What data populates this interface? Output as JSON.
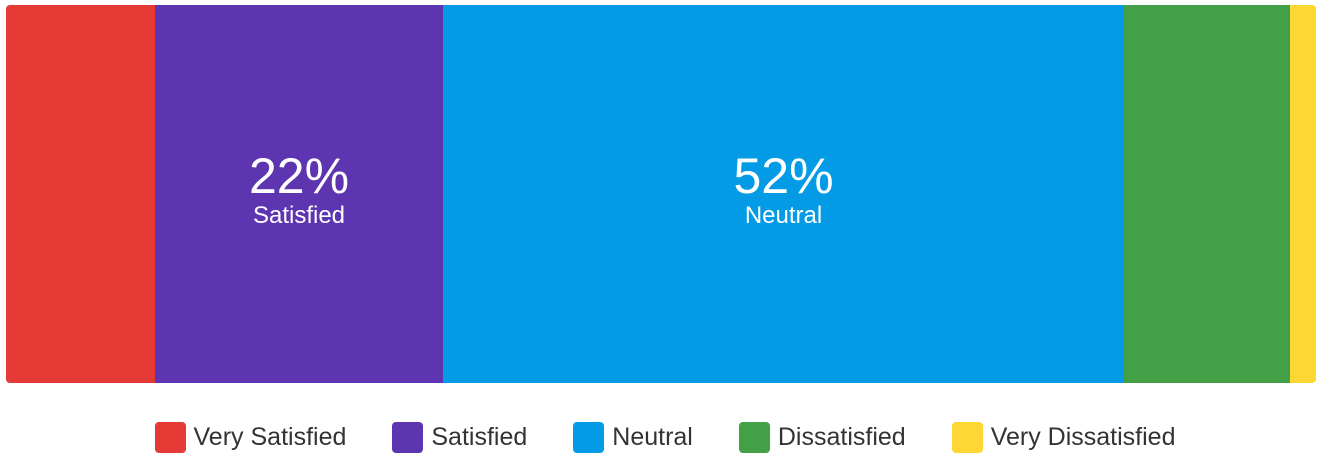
{
  "chart_data": {
    "type": "bar",
    "subtype": "100%-stacked-horizontal",
    "series": [
      {
        "name": "Very Satisfied",
        "value": 11.4,
        "color": "#E53935",
        "label": "",
        "label_name": ""
      },
      {
        "name": "Satisfied",
        "value": 22.0,
        "color": "#5E35B1",
        "label": "22%",
        "label_name": "Satisfied"
      },
      {
        "name": "Neutral",
        "value": 52.0,
        "color": "#039BE5",
        "label": "52%",
        "label_name": "Neutral"
      },
      {
        "name": "Dissatisfied",
        "value": 12.7,
        "color": "#43A047",
        "label": "",
        "label_name": ""
      },
      {
        "name": "Very Dissatisfied",
        "value": 1.9,
        "color": "#FDD835",
        "label": "",
        "label_name": ""
      }
    ],
    "legend_position": "bottom",
    "grid": false
  }
}
